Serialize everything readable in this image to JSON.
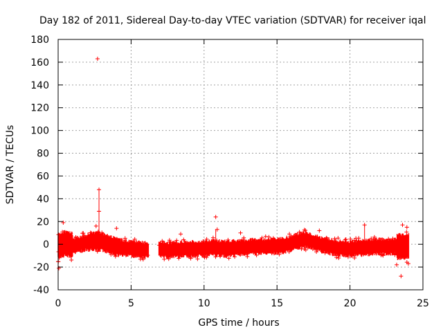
{
  "chart_data": {
    "type": "scatter",
    "title": "Day 182 of 2011, Sidereal Day-to-day VTEC variation (SDTVAR) for receiver iqal",
    "xlabel": "GPS time / hours",
    "ylabel": "SDTVAR / TECUs",
    "xlim": [
      0,
      25
    ],
    "ylim": [
      -40,
      180
    ],
    "xticks": [
      0,
      5,
      10,
      15,
      20,
      25
    ],
    "yticks": [
      -40,
      -20,
      0,
      20,
      40,
      60,
      80,
      100,
      120,
      140,
      160,
      180
    ],
    "grid": true,
    "series_color": "#ff0000",
    "marker": "+",
    "gap_hours": [
      6.2,
      6.9
    ],
    "trend": [
      {
        "x": 0.0,
        "y": -2
      },
      {
        "x": 0.5,
        "y": 1
      },
      {
        "x": 1.0,
        "y": -1
      },
      {
        "x": 1.5,
        "y": 0
      },
      {
        "x": 2.0,
        "y": 2
      },
      {
        "x": 2.5,
        "y": 3
      },
      {
        "x": 3.0,
        "y": 2
      },
      {
        "x": 3.5,
        "y": 0
      },
      {
        "x": 4.0,
        "y": -2
      },
      {
        "x": 4.5,
        "y": -3
      },
      {
        "x": 5.0,
        "y": -4
      },
      {
        "x": 5.5,
        "y": -4
      },
      {
        "x": 6.0,
        "y": -5
      },
      {
        "x": 6.9,
        "y": -4
      },
      {
        "x": 7.5,
        "y": -5
      },
      {
        "x": 8.5,
        "y": -4
      },
      {
        "x": 9.5,
        "y": -4
      },
      {
        "x": 10.5,
        "y": -3
      },
      {
        "x": 11.5,
        "y": -4
      },
      {
        "x": 12.5,
        "y": -3
      },
      {
        "x": 13.5,
        "y": -2
      },
      {
        "x": 14.5,
        "y": -2
      },
      {
        "x": 15.5,
        "y": -1
      },
      {
        "x": 16.0,
        "y": 1
      },
      {
        "x": 16.5,
        "y": 3
      },
      {
        "x": 17.0,
        "y": 4
      },
      {
        "x": 17.5,
        "y": 2
      },
      {
        "x": 18.0,
        "y": 0
      },
      {
        "x": 19.0,
        "y": -3
      },
      {
        "x": 20.0,
        "y": -4
      },
      {
        "x": 21.0,
        "y": -3
      },
      {
        "x": 22.0,
        "y": -2
      },
      {
        "x": 23.0,
        "y": -2
      },
      {
        "x": 24.0,
        "y": -2
      }
    ],
    "outliers": [
      {
        "x": 2.7,
        "y": 163
      },
      {
        "x": 2.8,
        "y": 48
      },
      {
        "x": 2.8,
        "y": 29
      },
      {
        "x": 2.6,
        "y": 16
      },
      {
        "x": 0.35,
        "y": 19
      },
      {
        "x": 0.05,
        "y": -21
      },
      {
        "x": 10.8,
        "y": 24
      },
      {
        "x": 10.9,
        "y": 13
      },
      {
        "x": 21.0,
        "y": 17
      },
      {
        "x": 23.5,
        "y": -28
      },
      {
        "x": 23.6,
        "y": 17
      },
      {
        "x": 23.9,
        "y": 15
      },
      {
        "x": 4.0,
        "y": 14
      },
      {
        "x": 8.4,
        "y": 9
      },
      {
        "x": 12.5,
        "y": 10
      },
      {
        "x": 17.9,
        "y": 12
      },
      {
        "x": 23.2,
        "y": -18
      },
      {
        "x": 24.0,
        "y": -17
      }
    ]
  }
}
